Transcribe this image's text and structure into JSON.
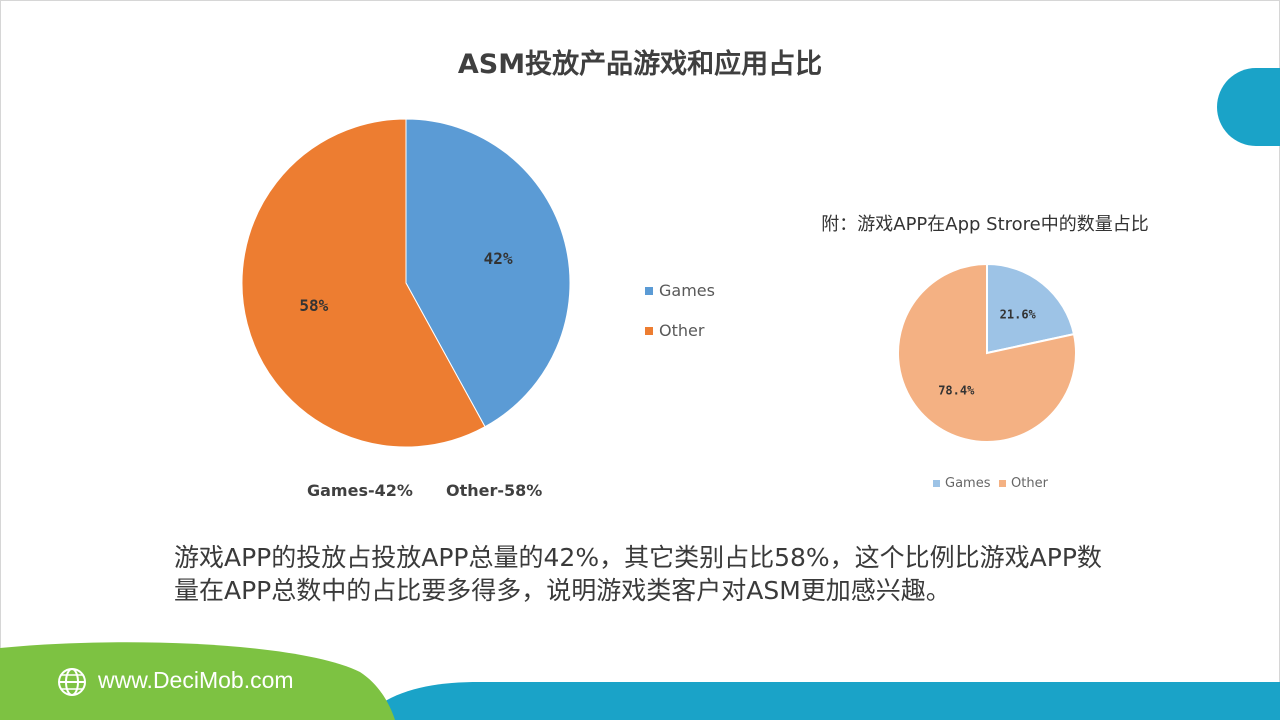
{
  "title": "ASM投放产品游戏和应用占比",
  "colors": {
    "games": "#5b9bd5",
    "other": "#ed7d31",
    "games_light": "#9dc3e6",
    "other_light": "#f4b183",
    "accent_teal": "#1aa3c8",
    "accent_green": "#7dc242"
  },
  "chart_data": [
    {
      "type": "pie",
      "title": "ASM投放产品游戏和应用占比",
      "categories": [
        "Games",
        "Other"
      ],
      "values": [
        42,
        58
      ],
      "data_labels": [
        "42%",
        "58%"
      ],
      "legend": [
        "Games",
        "Other"
      ],
      "legend_position": "right",
      "annotations": [
        "Games-42%",
        "Other-58%"
      ]
    },
    {
      "type": "pie",
      "title": "附：游戏APP在App Strore中的数量占比",
      "categories": [
        "Games",
        "Other"
      ],
      "values": [
        21.6,
        78.4
      ],
      "data_labels": [
        "21.6%",
        "78.4%"
      ],
      "legend": [
        "Games",
        "Other"
      ],
      "legend_position": "bottom"
    }
  ],
  "description": "游戏APP的投放占投放APP总量的42%，其它类别占比58%，这个比例比游戏APP数量在APP总数中的占比要多得多，说明游戏类客户对ASM更加感兴趣。",
  "footer": {
    "url": "www.DeciMob.com",
    "icon": "globe-icon"
  }
}
